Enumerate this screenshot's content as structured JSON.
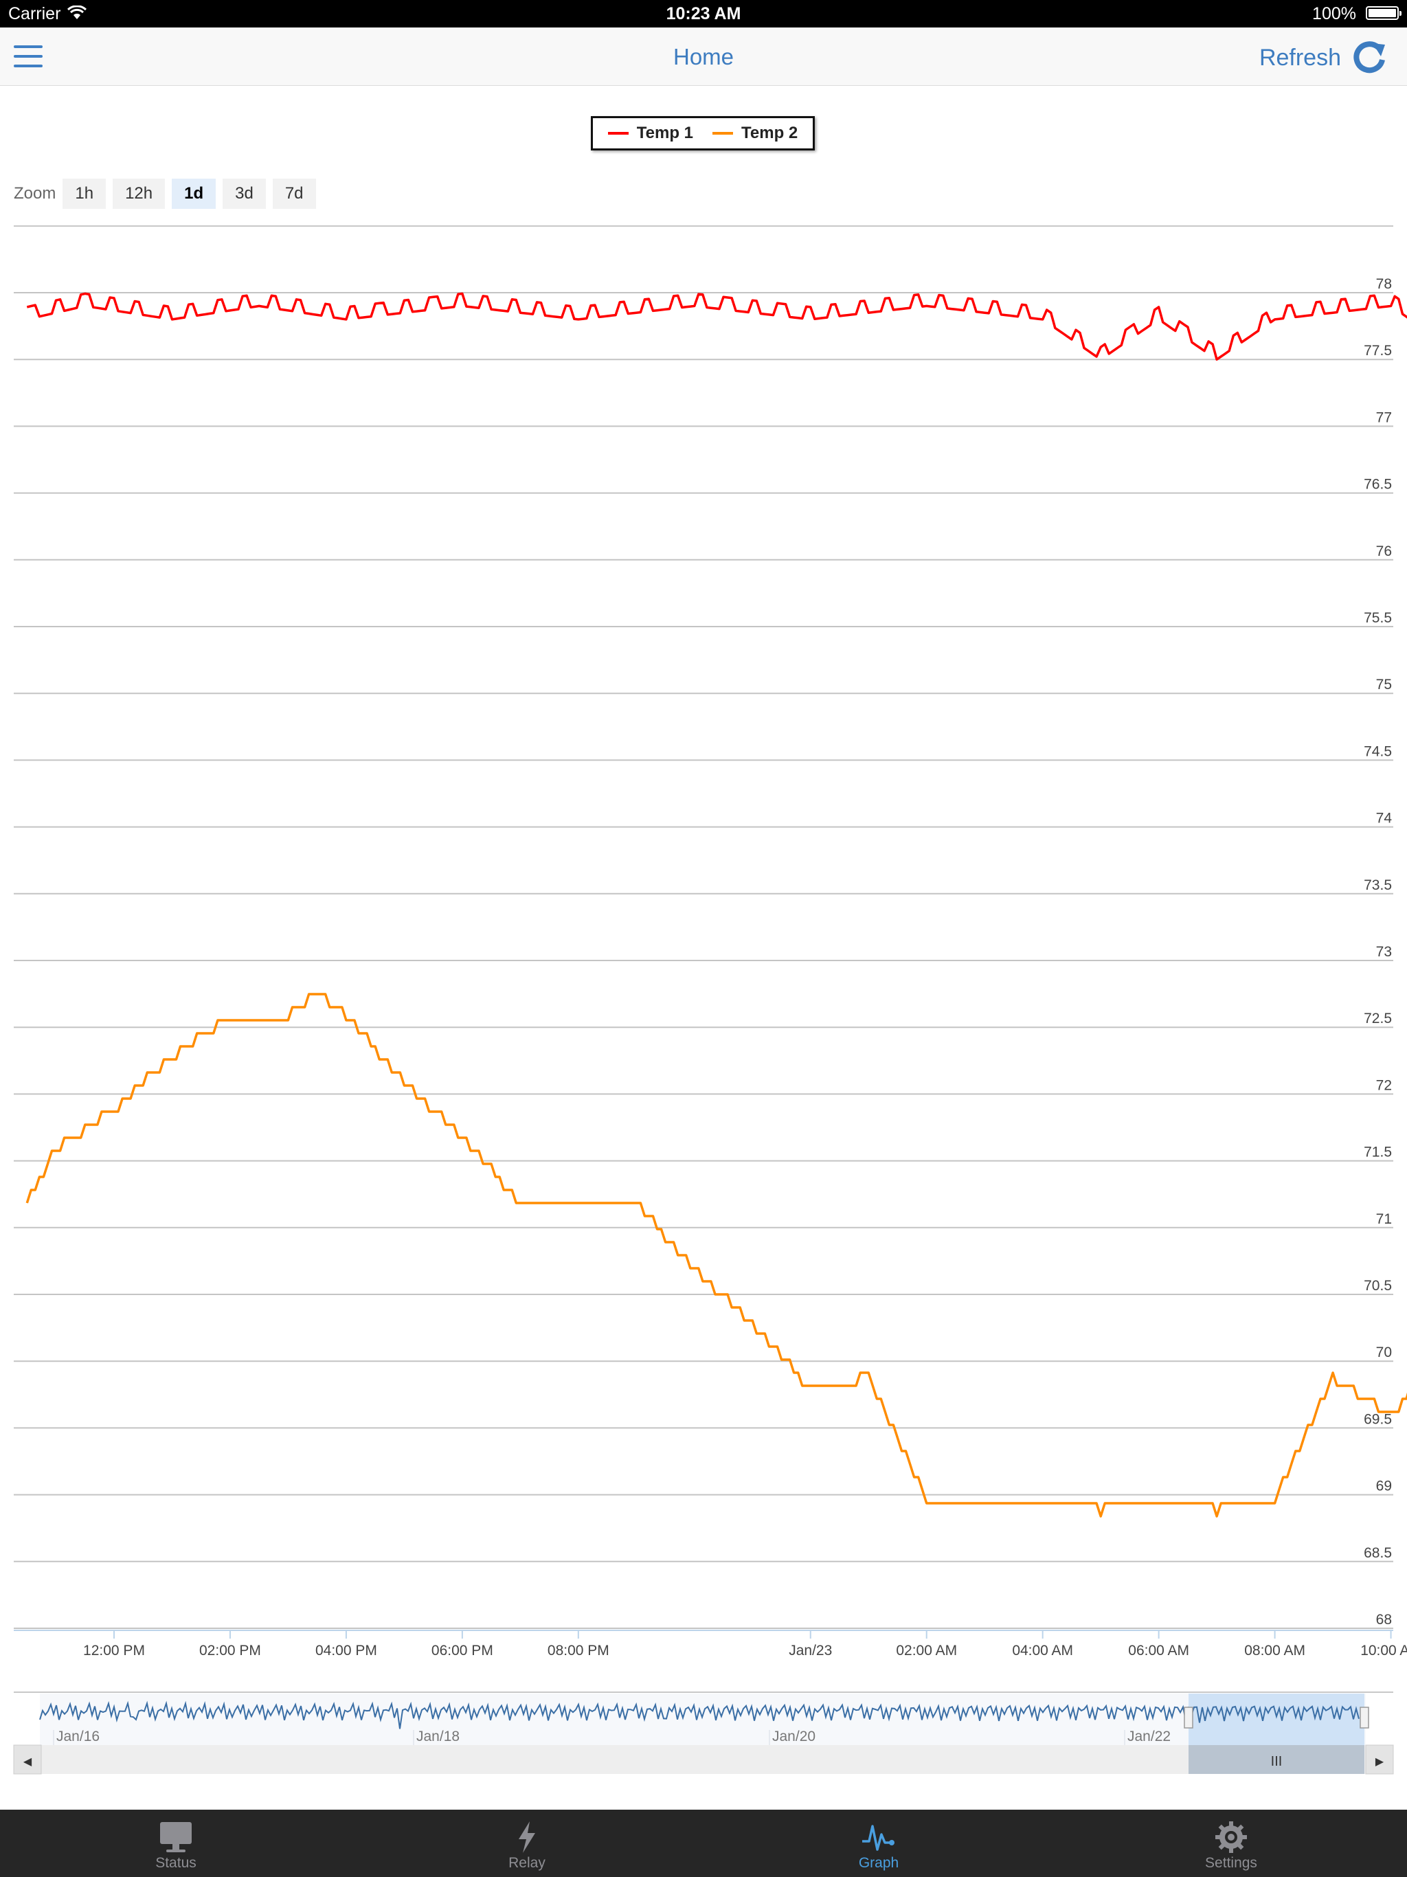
{
  "status_bar": {
    "carrier": "Carrier",
    "time": "10:23 AM",
    "battery": "100%"
  },
  "nav": {
    "title": "Home",
    "refresh_label": "Refresh"
  },
  "legend": [
    {
      "name": "Temp 1",
      "color": "#ff0000"
    },
    {
      "name": "Temp 2",
      "color": "#ff8c00"
    }
  ],
  "zoom": {
    "label": "Zoom",
    "options": [
      "1h",
      "12h",
      "1d",
      "3d",
      "7d"
    ],
    "selected": "1d"
  },
  "chart_data": {
    "type": "line",
    "x_axis": "time",
    "x_ticks": [
      "12:00 PM",
      "02:00 PM",
      "04:00 PM",
      "06:00 PM",
      "08:00 PM",
      "Jan/23",
      "02:00 AM",
      "04:00 AM",
      "06:00 AM",
      "08:00 AM",
      "10:00 AM"
    ],
    "y_ticks": [
      "78",
      "77.5",
      "77",
      "76.5",
      "76",
      "75.5",
      "75",
      "74.5",
      "74",
      "73.5",
      "73",
      "72.5",
      "72",
      "71.5",
      "71",
      "70.5",
      "70",
      "69.5",
      "69",
      "68.5",
      "68"
    ],
    "ylim": [
      68,
      78.2
    ],
    "grid": true,
    "legend_position": "top-center",
    "series": [
      {
        "name": "Temp 1",
        "color": "#ff0000",
        "points": [
          [
            "Jan/22 10:30 AM",
            77.8
          ],
          [
            "Jan/22 11:30 AM",
            77.9
          ],
          [
            "Jan/22 01:00 PM",
            77.8
          ],
          [
            "Jan/22 02:30 PM",
            77.9
          ],
          [
            "Jan/22 04:00 PM",
            77.8
          ],
          [
            "Jan/22 06:00 PM",
            77.9
          ],
          [
            "Jan/22 08:00 PM",
            77.8
          ],
          [
            "Jan/22 10:00 PM",
            77.9
          ],
          [
            "Jan/23 12:00 AM",
            77.8
          ],
          [
            "Jan/23 02:00 AM",
            77.9
          ],
          [
            "Jan/23 04:00 AM",
            77.8
          ],
          [
            "Jan/23 05:00 AM",
            77.5
          ],
          [
            "Jan/23 06:00 AM",
            77.8
          ],
          [
            "Jan/23 07:00 AM",
            77.5
          ],
          [
            "Jan/23 08:00 AM",
            77.8
          ],
          [
            "Jan/23 10:00 AM",
            77.9
          ],
          [
            "Jan/23 10:20 AM",
            77.8
          ]
        ]
      },
      {
        "name": "Temp 2",
        "color": "#ff8c00",
        "points": [
          [
            "Jan/22 10:30 AM",
            71.2
          ],
          [
            "Jan/22 11:00 AM",
            71.6
          ],
          [
            "Jan/22 12:00 PM",
            71.9
          ],
          [
            "Jan/22 01:00 PM",
            72.3
          ],
          [
            "Jan/22 02:00 PM",
            72.6
          ],
          [
            "Jan/22 03:00 PM",
            72.6
          ],
          [
            "Jan/22 03:30 PM",
            72.8
          ],
          [
            "Jan/22 04:00 PM",
            72.6
          ],
          [
            "Jan/22 05:00 PM",
            72.1
          ],
          [
            "Jan/22 06:00 PM",
            71.7
          ],
          [
            "Jan/22 07:00 PM",
            71.2
          ],
          [
            "Jan/22 09:00 PM",
            71.2
          ],
          [
            "Jan/22 10:00 PM",
            70.7
          ],
          [
            "Jan/22 11:00 PM",
            70.3
          ],
          [
            "Jan/23 12:00 AM",
            69.8
          ],
          [
            "Jan/23 01:00 AM",
            69.9
          ],
          [
            "Jan/23 02:00 AM",
            69.0
          ],
          [
            "Jan/23 03:00 AM",
            69.0
          ],
          [
            "Jan/23 04:00 AM",
            69.0
          ],
          [
            "Jan/23 05:00 AM",
            68.9
          ],
          [
            "Jan/23 06:00 AM",
            69.0
          ],
          [
            "Jan/23 07:00 AM",
            68.9
          ],
          [
            "Jan/23 08:00 AM",
            69.0
          ],
          [
            "Jan/23 09:00 AM",
            69.9
          ],
          [
            "Jan/23 10:00 AM",
            69.6
          ],
          [
            "Jan/23 10:20 AM",
            69.8
          ]
        ]
      }
    ]
  },
  "navigator": {
    "labels": [
      "Jan/16",
      "Jan/18",
      "Jan/20",
      "Jan/22"
    ],
    "series_color": "#3a6ea5",
    "handle_label": "III",
    "left_arrow": "◀",
    "right_arrow": "▶"
  },
  "tabs": [
    {
      "label": "Status",
      "icon": "monitor-icon"
    },
    {
      "label": "Relay",
      "icon": "lightning-icon"
    },
    {
      "label": "Graph",
      "icon": "pulse-graph-icon"
    },
    {
      "label": "Settings",
      "icon": "gear-icon"
    }
  ],
  "active_tab": "Graph",
  "colors": {
    "accent": "#3d7cc0",
    "tab_active": "#4a9fe0",
    "tab_inactive": "#8e8e93",
    "tab_bar": "#262626",
    "navigator_selection": "#cfe2f6"
  }
}
